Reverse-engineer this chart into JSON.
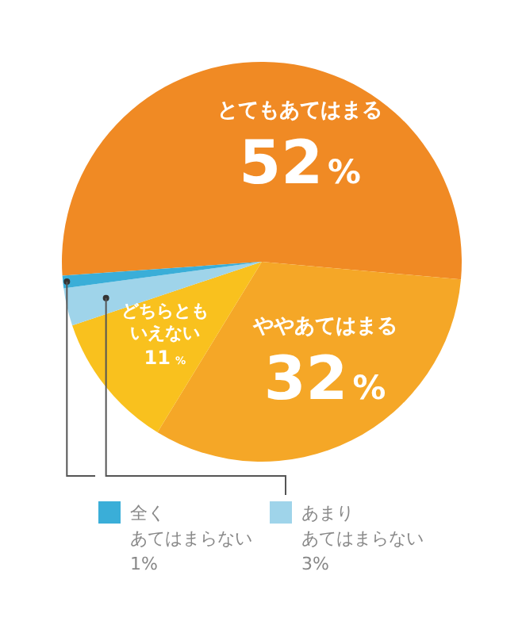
{
  "chart_data": {
    "type": "pie",
    "categories": [
      "とてもあてはまる",
      "ややあてはまる",
      "どちらともいえない",
      "あまりあてはまらない",
      "全くあてはまらない"
    ],
    "values": [
      52,
      32,
      11,
      3,
      1
    ],
    "colors": [
      "#f08a24",
      "#f5a727",
      "#f9c11e",
      "#9fd4ea",
      "#3aaed8"
    ],
    "value_labels": [
      "52%",
      "32%",
      "11%",
      "3%",
      "1%"
    ],
    "legend": "bottom"
  }
}
